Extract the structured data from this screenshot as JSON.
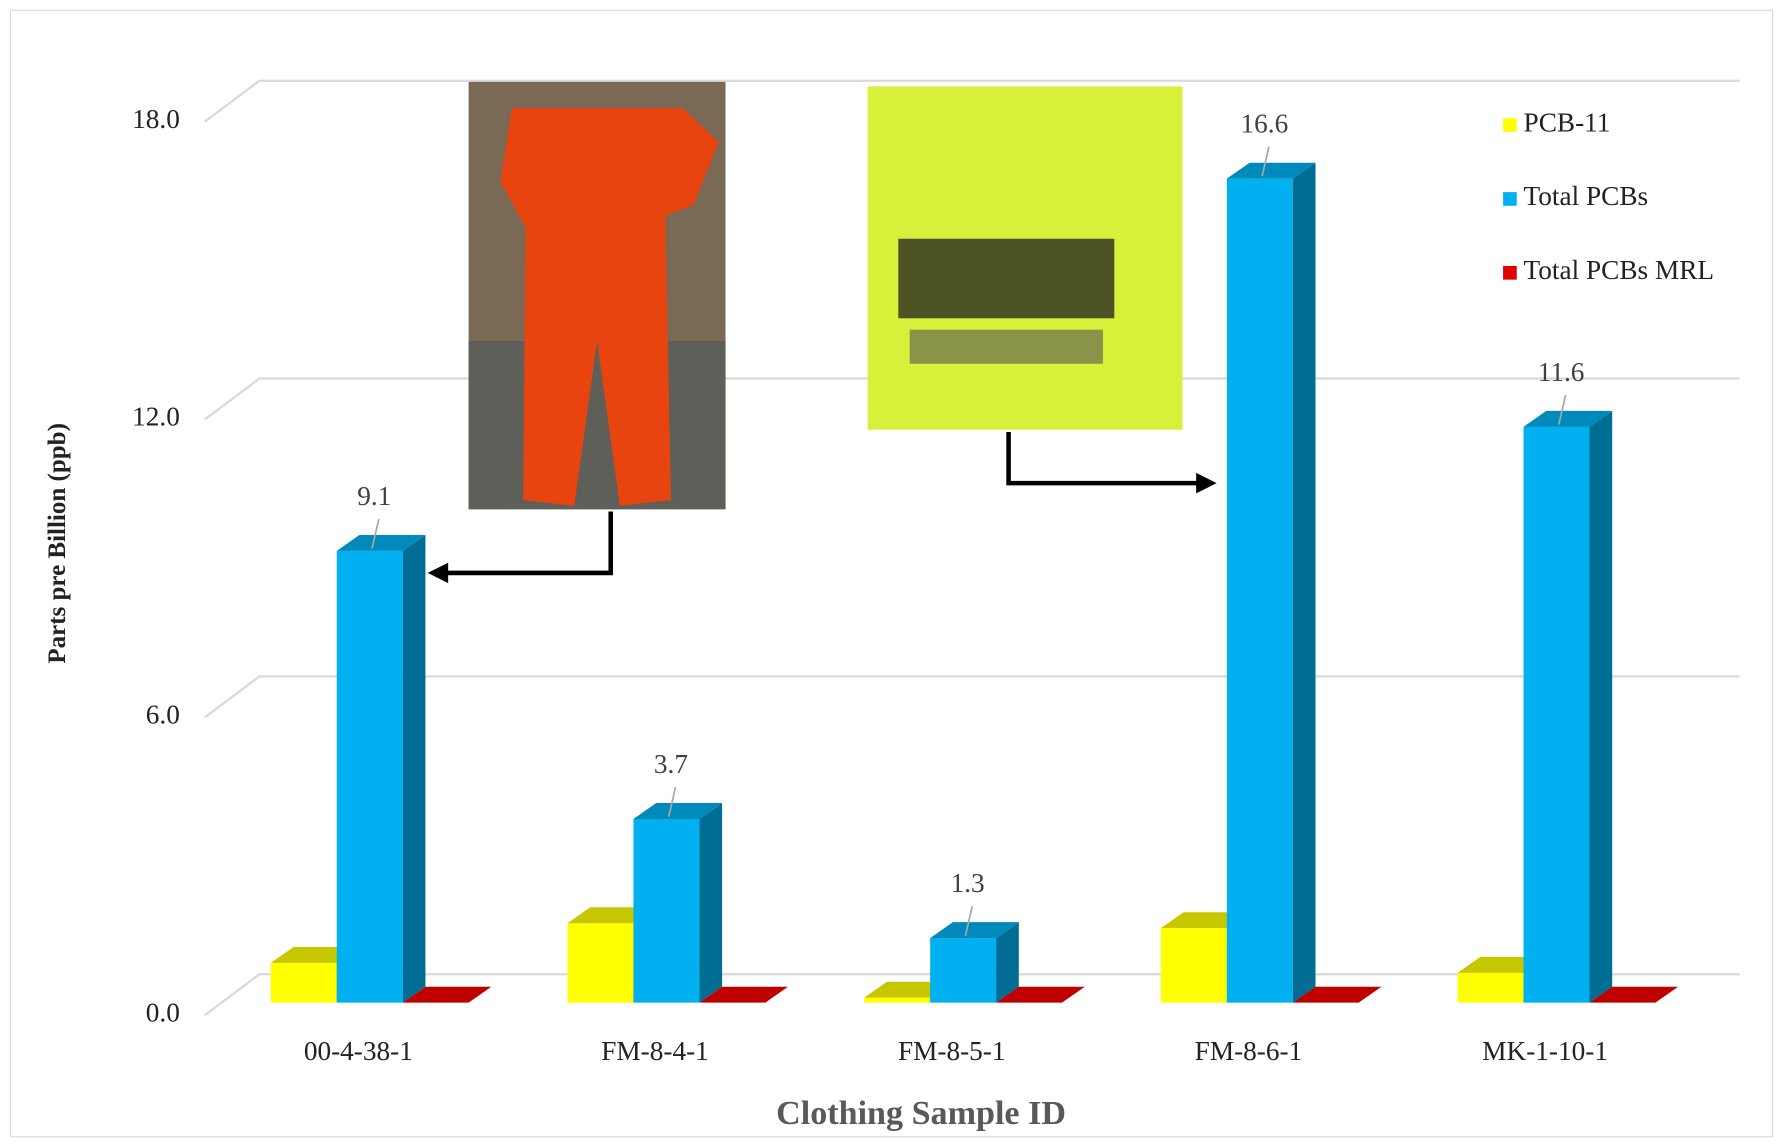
{
  "chart_data": {
    "type": "bar3d",
    "x_label": "Clothing Sample ID",
    "y_label": "Parts pre Billion (ppb)",
    "categories": [
      "00-4-38-1",
      "FM-8-4-1",
      "FM-8-5-1",
      "FM-8-6-1",
      "MK-1-10-1"
    ],
    "series": [
      {
        "name": "PCB-11",
        "color": "#ffff00",
        "values": [
          0.8,
          1.6,
          0.1,
          1.5,
          0.6
        ],
        "show_values": false
      },
      {
        "name": "Total PCBs",
        "color": "#00b0f0",
        "values": [
          9.1,
          3.7,
          1.3,
          16.6,
          11.6
        ],
        "show_values": true
      },
      {
        "name": "Total PCBs MRL",
        "color": "#e00000",
        "values": [
          0,
          0,
          0,
          0,
          0
        ],
        "show_values": false
      }
    ],
    "ylim": [
      0,
      18
    ],
    "yticks": [
      {
        "value": 0,
        "label": "0.0"
      },
      {
        "value": 6,
        "label": "6.0"
      },
      {
        "value": 12,
        "label": "12.0"
      },
      {
        "value": 18,
        "label": "18.0"
      }
    ],
    "grid": true,
    "legend": "top-right"
  }
}
